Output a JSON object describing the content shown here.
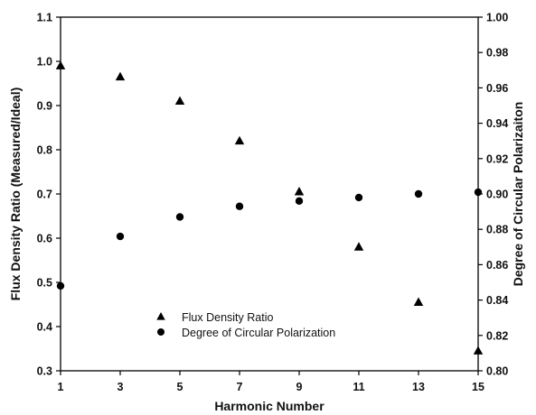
{
  "chart_data": {
    "type": "scatter",
    "x_axis": {
      "label": "Harmonic Number",
      "range": [
        1,
        15
      ],
      "ticks": [
        1,
        3,
        5,
        7,
        9,
        11,
        13,
        15
      ]
    },
    "y_axis_left": {
      "label": "Flux Density Ratio (Measured/Ideal)",
      "range": [
        0.3,
        1.1
      ],
      "ticks": [
        "0.3",
        "0.4",
        "0.5",
        "0.6",
        "0.7",
        "0.8",
        "0.9",
        "1.0",
        "1.1"
      ]
    },
    "y_axis_right": {
      "label": "Degree of Circular Polarizaiton",
      "range": [
        0.8,
        1.0
      ],
      "ticks": [
        "0.80",
        "0.82",
        "0.84",
        "0.86",
        "0.88",
        "0.90",
        "0.92",
        "0.94",
        "0.96",
        "0.98",
        "1.00"
      ]
    },
    "legend": {
      "placement": "bottom-center"
    },
    "series": [
      {
        "name": "Flux Density Ratio",
        "marker": "triangle",
        "axis": "left",
        "x": [
          1,
          3,
          5,
          7,
          9,
          11,
          13,
          15
        ],
        "y": [
          0.99,
          0.965,
          0.91,
          0.82,
          0.705,
          0.58,
          0.455,
          0.345
        ]
      },
      {
        "name": "Degree of Circular Polarization",
        "marker": "circle",
        "axis": "right",
        "x": [
          1,
          3,
          5,
          7,
          9,
          11,
          13,
          15
        ],
        "y": [
          0.848,
          0.876,
          0.887,
          0.893,
          0.896,
          0.898,
          0.9,
          0.901
        ]
      }
    ]
  }
}
